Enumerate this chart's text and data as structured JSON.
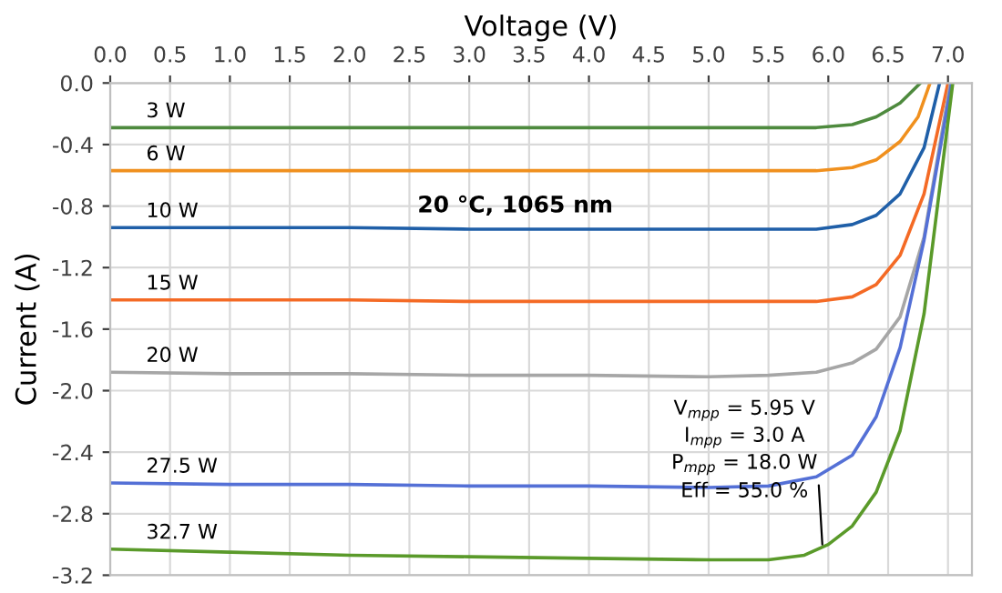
{
  "chart_data": {
    "type": "line",
    "xlabel": "Voltage (V)",
    "ylabel": "Current (A)",
    "xlim": [
      0,
      7.2
    ],
    "ylim": [
      -3.2,
      0
    ],
    "xticks": [
      {
        "value": 0,
        "label": "0.0"
      },
      {
        "value": 0.5,
        "label": "0.5"
      },
      {
        "value": 1,
        "label": "1.0"
      },
      {
        "value": 1.5,
        "label": "1.5"
      },
      {
        "value": 2,
        "label": "2.0"
      },
      {
        "value": 2.5,
        "label": "2.5"
      },
      {
        "value": 3,
        "label": "3.0"
      },
      {
        "value": 3.5,
        "label": "3.5"
      },
      {
        "value": 4,
        "label": "4.0"
      },
      {
        "value": 4.5,
        "label": "4.5"
      },
      {
        "value": 5,
        "label": "5.0"
      },
      {
        "value": 5.5,
        "label": "5.5"
      },
      {
        "value": 6,
        "label": "6.0"
      },
      {
        "value": 6.5,
        "label": "6.5"
      },
      {
        "value": 7,
        "label": "7.0"
      }
    ],
    "yticks": [
      {
        "value": 0,
        "label": "0.0"
      },
      {
        "value": -0.4,
        "label": "-0.4"
      },
      {
        "value": -0.8,
        "label": "-0.8"
      },
      {
        "value": -1.2,
        "label": "-1.2"
      },
      {
        "value": -1.6,
        "label": "-1.6"
      },
      {
        "value": -2.0,
        "label": "-2.0"
      },
      {
        "value": -2.4,
        "label": "-2.4"
      },
      {
        "value": -2.8,
        "label": "-2.8"
      },
      {
        "value": -3.2,
        "label": "-3.2"
      }
    ],
    "grid": true,
    "marker": "none",
    "line_style": "solid",
    "series": [
      {
        "name": "3 W",
        "color": "#4e8a3e",
        "x": [
          0,
          1,
          2,
          3,
          4,
          5,
          5.9,
          6.2,
          6.4,
          6.6,
          6.77
        ],
        "values": [
          -0.29,
          -0.29,
          -0.29,
          -0.29,
          -0.29,
          -0.29,
          -0.29,
          -0.27,
          -0.22,
          -0.13,
          0
        ]
      },
      {
        "name": "6 W",
        "color": "#f0901e",
        "x": [
          0,
          1,
          2,
          3,
          4,
          5,
          5.9,
          6.2,
          6.4,
          6.6,
          6.75,
          6.85
        ],
        "values": [
          -0.57,
          -0.57,
          -0.57,
          -0.57,
          -0.57,
          -0.57,
          -0.57,
          -0.55,
          -0.5,
          -0.38,
          -0.22,
          0
        ]
      },
      {
        "name": "10 W",
        "color": "#1f5fa8",
        "x": [
          0,
          1,
          2,
          3,
          4,
          5,
          5.9,
          6.2,
          6.4,
          6.6,
          6.8,
          6.93
        ],
        "values": [
          -0.94,
          -0.94,
          -0.94,
          -0.95,
          -0.95,
          -0.95,
          -0.95,
          -0.92,
          -0.86,
          -0.72,
          -0.42,
          0
        ]
      },
      {
        "name": "15 W",
        "color": "#f46a25",
        "x": [
          0,
          1,
          2,
          3,
          4,
          5,
          5.9,
          6.2,
          6.4,
          6.6,
          6.8,
          7.0
        ],
        "values": [
          -1.41,
          -1.41,
          -1.41,
          -1.42,
          -1.42,
          -1.42,
          -1.42,
          -1.39,
          -1.31,
          -1.12,
          -0.72,
          0
        ]
      },
      {
        "name": "20 W",
        "color": "#a6a6a6",
        "x": [
          0,
          1,
          2,
          3,
          4,
          5,
          5.5,
          5.9,
          6.2,
          6.4,
          6.6,
          6.8,
          7.02
        ],
        "values": [
          -1.88,
          -1.89,
          -1.89,
          -1.9,
          -1.9,
          -1.91,
          -1.9,
          -1.88,
          -1.82,
          -1.73,
          -1.52,
          -1.0,
          0
        ]
      },
      {
        "name": "27.5 W",
        "color": "#5470d6",
        "x": [
          0,
          1,
          2,
          3,
          4,
          5,
          5.5,
          5.9,
          6.2,
          6.4,
          6.6,
          6.8,
          7.03
        ],
        "values": [
          -2.6,
          -2.61,
          -2.61,
          -2.62,
          -2.62,
          -2.63,
          -2.62,
          -2.56,
          -2.42,
          -2.17,
          -1.72,
          -1.02,
          0
        ]
      },
      {
        "name": "32.7 W",
        "color": "#5a9a2a",
        "x": [
          0,
          1,
          2,
          3,
          4,
          5,
          5.5,
          5.8,
          6.0,
          6.2,
          6.4,
          6.6,
          6.8,
          7.04
        ],
        "values": [
          -3.03,
          -3.05,
          -3.07,
          -3.08,
          -3.09,
          -3.1,
          -3.1,
          -3.07,
          -3.0,
          -2.88,
          -2.66,
          -2.26,
          -1.5,
          0
        ]
      }
    ],
    "annotations": [
      "20 °C, 1065 nm",
      "V$_{mpp}$ = 5.95 V",
      "I$_{mpp}$ = 3.0 A",
      {
        "text": "P$_{mpp}$ = 18.0 W",
        "x": 5.95,
        "y": -3.0
      },
      "Eff = 55.0 %"
    ]
  }
}
